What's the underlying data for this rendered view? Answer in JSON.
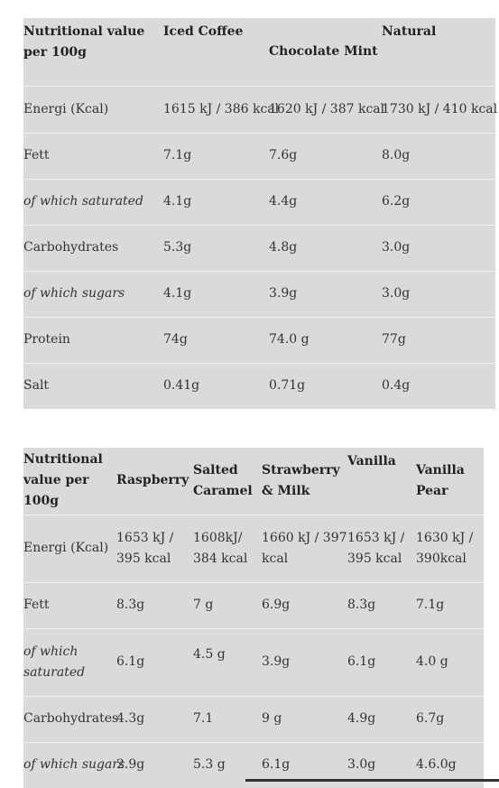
{
  "table1": {
    "headers": [
      "Nutritional value per 100g",
      "Iced Coffee",
      "Chocolate Mint",
      "Natural"
    ],
    "rows": [
      {
        "label": "Energi (Kcal)",
        "italic": false,
        "values": [
          "1615 kJ / 386 kcal",
          "1620 kJ / 387 kcal",
          "1730 kJ / 410 kcal"
        ]
      },
      {
        "label": "Fett",
        "italic": false,
        "values": [
          "7.1g",
          "7.6g",
          "8.0g"
        ]
      },
      {
        "label": "of which saturated",
        "italic": true,
        "values": [
          "4.1g",
          "4.4g",
          "6.2g"
        ]
      },
      {
        "label": "Carbohydrates",
        "italic": false,
        "values": [
          "5.3g",
          "4.8g",
          "3.0g"
        ]
      },
      {
        "label": "of which sugars",
        "italic": true,
        "values": [
          "4.1g",
          "3.9g",
          "3.0g"
        ]
      },
      {
        "label": "Protein",
        "italic": false,
        "values": [
          "74g",
          "74.0 g",
          "77g"
        ]
      },
      {
        "label": "Salt",
        "italic": false,
        "values": [
          "0.41g",
          "0.71g",
          "0.4g"
        ]
      }
    ]
  },
  "table2": {
    "headers": [
      "Nutritional value per 100g",
      "Raspberry",
      "Salted Caramel",
      "Strawberry & Milk",
      "Vanilla",
      "Vanilla Pear"
    ],
    "rows": [
      {
        "label": "Energi (Kcal)",
        "italic": false,
        "values": [
          "1653 kJ / 395 kcal",
          "1608kJ/ 384 kcal",
          "1660 kJ / 397 kcal",
          "1653 kJ / 395 kcal",
          "1630 kJ / 390kcal"
        ]
      },
      {
        "label": "Fett",
        "italic": false,
        "values": [
          "8.3g",
          "7 g",
          "6.9g",
          "8.3g",
          "7.1g"
        ]
      },
      {
        "label": "of which saturated",
        "italic": true,
        "values": [
          "6.1g",
          "4.5 g",
          "3.9g",
          "6.1g",
          "4.0 g"
        ]
      },
      {
        "label": "Carbohydrates",
        "italic": false,
        "values": [
          "4.3g",
          "7.1",
          "9 g",
          "4.9g",
          "6.7g"
        ]
      },
      {
        "label": "of which sugars",
        "italic": true,
        "values": [
          "2.9g",
          "5.3 g",
          "6.1g",
          "3.0g",
          "4.6.0g"
        ]
      }
    ]
  }
}
